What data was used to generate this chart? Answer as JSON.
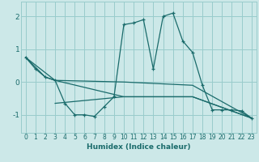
{
  "xlabel": "Humidex (Indice chaleur)",
  "bg_color": "#cce8e8",
  "line_color": "#1a6b6b",
  "grid_color": "#99cccc",
  "xlim": [
    -0.5,
    23.5
  ],
  "ylim": [
    -1.55,
    2.45
  ],
  "xticks": [
    0,
    1,
    2,
    3,
    4,
    5,
    6,
    7,
    8,
    9,
    10,
    11,
    12,
    13,
    14,
    15,
    16,
    17,
    18,
    19,
    20,
    21,
    22,
    23
  ],
  "yticks": [
    -1,
    0,
    1,
    2
  ],
  "series1_x": [
    0,
    1,
    2,
    3,
    4,
    5,
    6,
    7,
    8,
    9,
    10,
    11,
    12,
    13,
    14,
    15,
    16,
    17,
    18,
    19,
    20,
    21,
    22,
    23
  ],
  "series1_y": [
    0.75,
    0.4,
    0.15,
    0.05,
    -0.65,
    -1.0,
    -1.0,
    -1.05,
    -0.75,
    -0.45,
    1.75,
    1.8,
    1.9,
    0.4,
    2.0,
    2.1,
    1.25,
    0.9,
    -0.1,
    -0.85,
    -0.85,
    -0.85,
    -0.88,
    -1.1
  ],
  "series2_x": [
    0,
    2,
    3,
    10,
    17,
    23
  ],
  "series2_y": [
    0.75,
    0.15,
    0.05,
    0.0,
    -0.1,
    -1.1
  ],
  "series3_x": [
    0,
    3,
    10,
    17,
    23
  ],
  "series3_y": [
    0.75,
    0.05,
    -0.45,
    -0.45,
    -1.1
  ],
  "series4_x": [
    3,
    10,
    17,
    23
  ],
  "series4_y": [
    -0.65,
    -0.45,
    -0.45,
    -1.1
  ]
}
